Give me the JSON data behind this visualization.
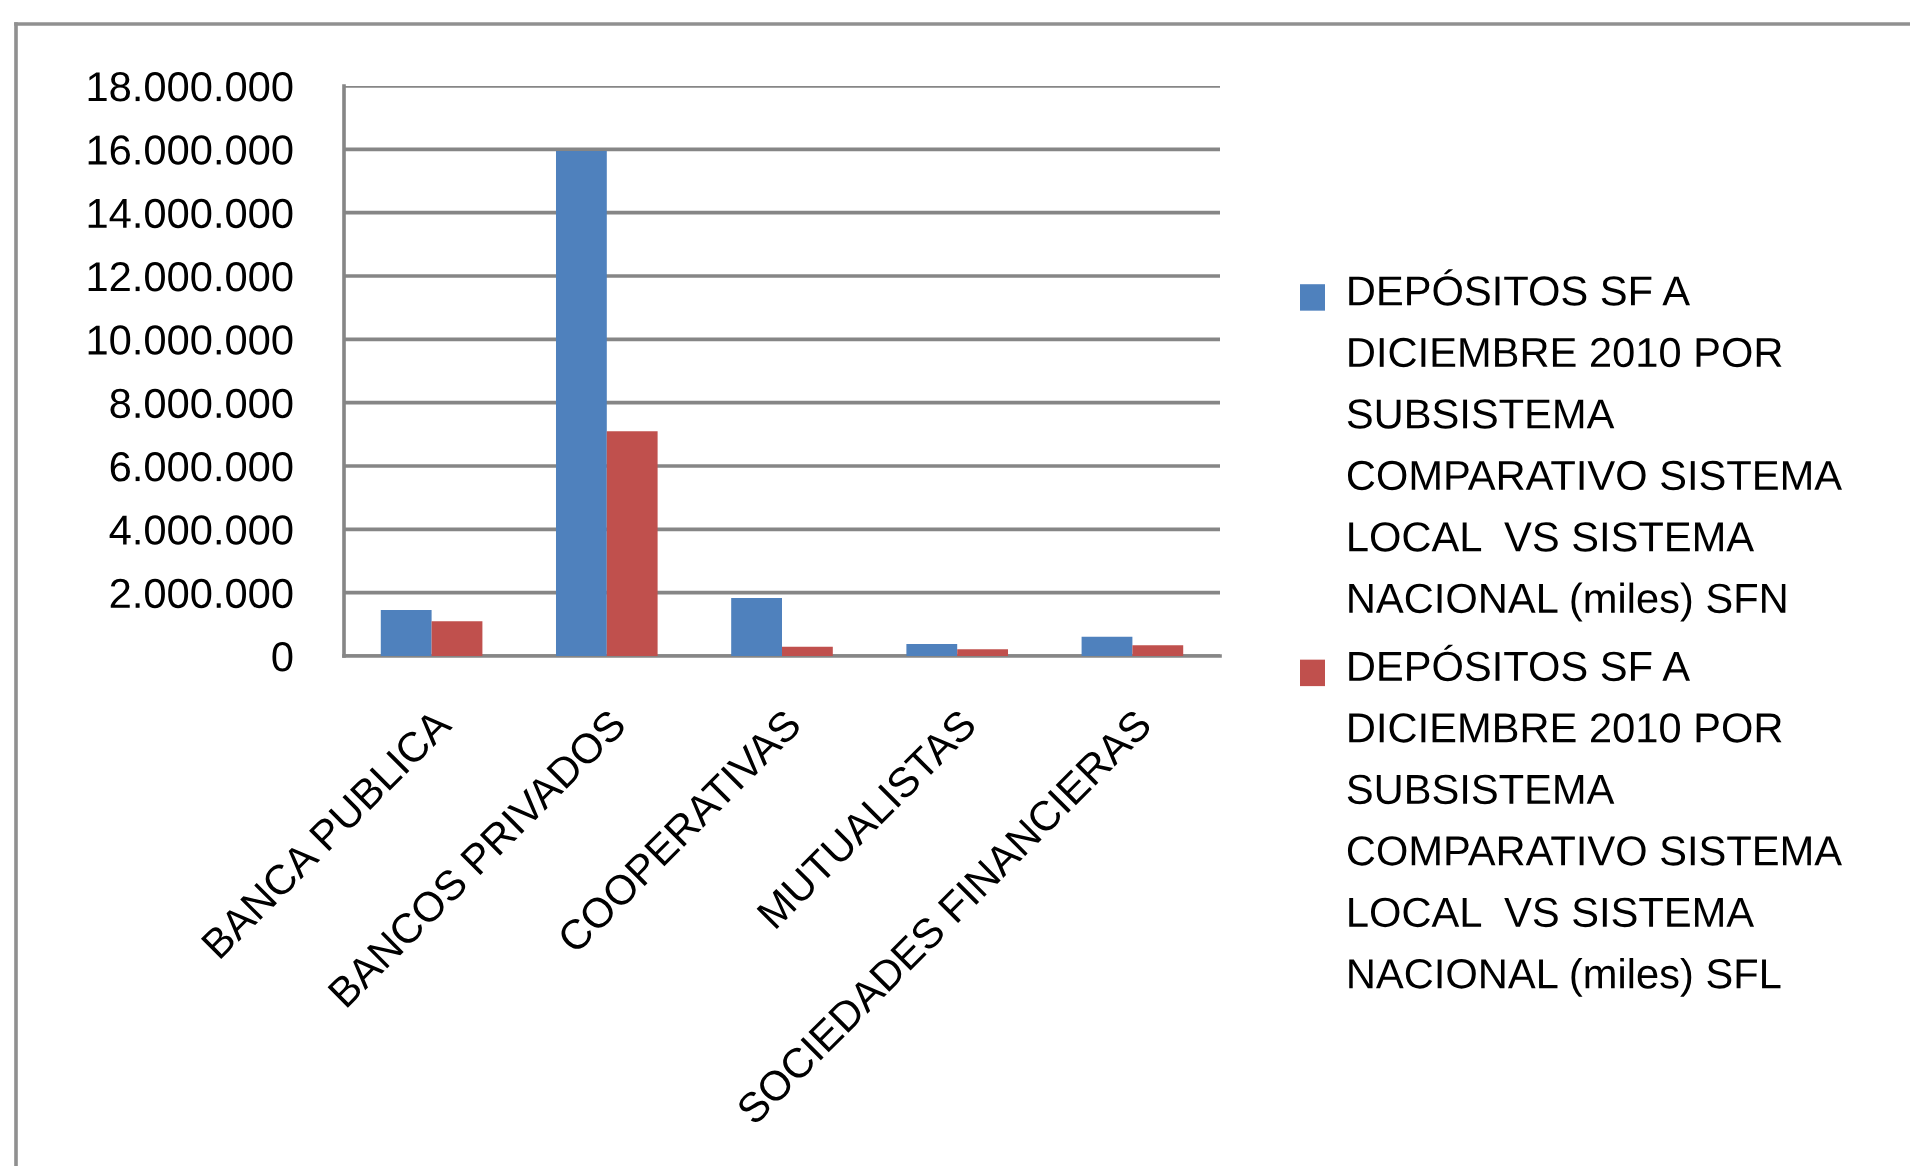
{
  "chart_data": {
    "type": "bar",
    "categories": [
      "BANCA PUBLICA",
      "BANCOS PRIVADOS",
      "COOPERATIVAS",
      "MUTUALISTAS",
      "SOCIEDADES FINANCIERAS"
    ],
    "series": [
      {
        "name": "DEPÓSITOS SF A DICIEMBRE 2010 POR SUBSISTEMA COMPARATIVO SISTEMA LOCAL  VS SISTEMA NACIONAL (miles) SFN",
        "color": "#4f81bd",
        "values": [
          1450000,
          15950000,
          1830000,
          380000,
          610000
        ]
      },
      {
        "name": "DEPÓSITOS SF A DICIEMBRE 2010 POR SUBSISTEMA COMPARATIVO SISTEMA LOCAL  VS SISTEMA NACIONAL (miles) SFL",
        "color": "#c0504d",
        "values": [
          1100000,
          7100000,
          290000,
          210000,
          340000
        ]
      }
    ],
    "ylim": [
      0,
      18000000
    ],
    "yticks": [
      0,
      {
        "value": 2000000,
        "label": "2.000.000"
      },
      {
        "value": 4000000,
        "label": "4.000.000"
      },
      {
        "value": 6000000,
        "label": "6.000.000"
      },
      {
        "value": 8000000,
        "label": "8.000.000"
      },
      {
        "value": 10000000,
        "label": "10.000.000"
      },
      {
        "value": 12000000,
        "label": "12.000.000"
      },
      {
        "value": 14000000,
        "label": "14.000.000"
      },
      {
        "value": 16000000,
        "label": "16.000.000"
      },
      {
        "value": 18000000,
        "label": "18.000.000"
      }
    ],
    "grid": "y",
    "legend": "right"
  }
}
